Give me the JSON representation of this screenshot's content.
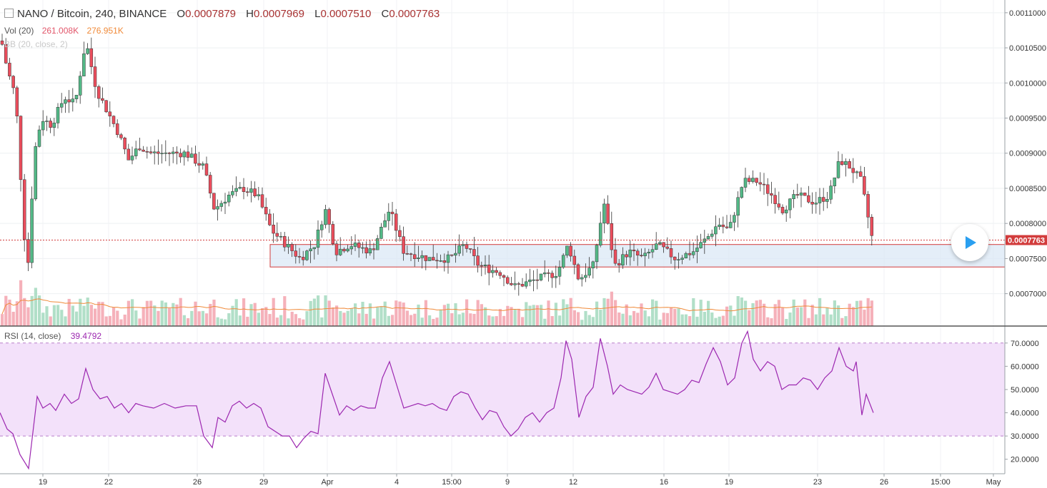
{
  "header": {
    "symbol": "NANO / Bitcoin, 240, BINANCE",
    "open_label": "O",
    "open": "0.0007879",
    "high_label": "H",
    "high": "0.0007969",
    "low_label": "L",
    "low": "0.0007510",
    "close_label": "C",
    "close": "0.0007763"
  },
  "indicators": {
    "volume_label": "Vol (20)",
    "volume_value": "261.008K",
    "volume_ma": "276.951K",
    "bb_label": "BB (20, close, 2)",
    "rsi_label": "RSI (14, close)",
    "rsi_value": "39.4792"
  },
  "colors": {
    "up": "#53b987",
    "down": "#eb4d5c",
    "rsi": "#9c27b0",
    "vol_ma": "#f08a39",
    "zone": "#dbe8f5",
    "zone_border": "#d23c3c",
    "price_tag": "#d23c3c"
  },
  "icons": {
    "play": "play-icon",
    "symbol": "square-icon"
  },
  "chart_data": [
    {
      "type": "candlestick",
      "title": "NANO / Bitcoin, 240, BINANCE",
      "ylim": [
        0.00066,
        0.00111
      ],
      "y_ticks": [
        "0.0011000",
        "0.0010500",
        "0.0010000",
        "0.0009500",
        "0.0009000",
        "0.0008500",
        "0.0008000",
        "0.0007500",
        "0.0007000"
      ],
      "x_ticks": [
        "19",
        "22",
        "26",
        "29",
        "Apr",
        "4",
        "15:00",
        "9",
        "12",
        "16",
        "19",
        "23",
        "26",
        "15:00",
        "May"
      ],
      "last_price": "0.0007763",
      "support_zone": [
        0.000738,
        0.00077
      ],
      "close_path": [
        [
          0,
          0.00107
        ],
        [
          10,
          0.00102
        ],
        [
          22,
          0.00098
        ],
        [
          38,
          0.00072
        ],
        [
          48,
          0.0009
        ],
        [
          58,
          0.00095
        ],
        [
          72,
          0.00094
        ],
        [
          90,
          0.00098
        ],
        [
          105,
          0.00097
        ],
        [
          120,
          0.00106
        ],
        [
          135,
          0.00099
        ],
        [
          150,
          0.00096
        ],
        [
          165,
          0.00093
        ],
        [
          180,
          0.00089
        ],
        [
          195,
          0.00091
        ],
        [
          210,
          0.0009
        ],
        [
          230,
          0.0009
        ],
        [
          260,
          0.0009
        ],
        [
          285,
          0.00088
        ],
        [
          300,
          0.00082
        ],
        [
          320,
          0.00084
        ],
        [
          340,
          0.00085
        ],
        [
          360,
          0.00084
        ],
        [
          380,
          0.00079
        ],
        [
          400,
          0.00077
        ],
        [
          420,
          0.00075
        ],
        [
          440,
          0.00077
        ],
        [
          455,
          0.00082
        ],
        [
          470,
          0.00076
        ],
        [
          490,
          0.00077
        ],
        [
          520,
          0.00076
        ],
        [
          545,
          0.00082
        ],
        [
          565,
          0.00076
        ],
        [
          600,
          0.00075
        ],
        [
          630,
          0.00075
        ],
        [
          650,
          0.00077
        ],
        [
          670,
          0.00074
        ],
        [
          700,
          0.00073
        ],
        [
          720,
          0.00071
        ],
        [
          750,
          0.00072
        ],
        [
          780,
          0.00073
        ],
        [
          795,
          0.00077
        ],
        [
          810,
          0.00072
        ],
        [
          830,
          0.00074
        ],
        [
          845,
          0.00083
        ],
        [
          860,
          0.00074
        ],
        [
          880,
          0.00076
        ],
        [
          900,
          0.00075
        ],
        [
          920,
          0.00077
        ],
        [
          945,
          0.00075
        ],
        [
          970,
          0.00076
        ],
        [
          990,
          0.00078
        ],
        [
          1005,
          0.0008
        ],
        [
          1020,
          0.00079
        ],
        [
          1040,
          0.00086
        ],
        [
          1060,
          0.00086
        ],
        [
          1080,
          0.00084
        ],
        [
          1095,
          0.00082
        ],
        [
          1115,
          0.00084
        ],
        [
          1140,
          0.00083
        ],
        [
          1160,
          0.00084
        ],
        [
          1175,
          0.00089
        ],
        [
          1190,
          0.00088
        ],
        [
          1205,
          0.00086
        ],
        [
          1220,
          0.00078
        ]
      ]
    },
    {
      "type": "bar",
      "title": "Vol (20)",
      "values_note": "volume bars with 20-period moving average"
    },
    {
      "type": "line",
      "title": "RSI (14, close)",
      "ylim": [
        15,
        77
      ],
      "y_ticks": [
        "70.0000",
        "60.0000",
        "50.0000",
        "40.0000",
        "30.0000",
        "20.0000"
      ],
      "band": [
        30,
        70
      ],
      "series": [
        {
          "name": "RSI",
          "points": [
            [
              0,
              40
            ],
            [
              10,
              33
            ],
            [
              18,
              31
            ],
            [
              28,
              22
            ],
            [
              40,
              16
            ],
            [
              52,
              47
            ],
            [
              60,
              42
            ],
            [
              70,
              44
            ],
            [
              78,
              41
            ],
            [
              90,
              48
            ],
            [
              100,
              44
            ],
            [
              110,
              46
            ],
            [
              120,
              59
            ],
            [
              130,
              50
            ],
            [
              140,
              46
            ],
            [
              150,
              47
            ],
            [
              160,
              42
            ],
            [
              170,
              44
            ],
            [
              180,
              40
            ],
            [
              190,
              44
            ],
            [
              200,
              43
            ],
            [
              215,
              42
            ],
            [
              230,
              44
            ],
            [
              245,
              42
            ],
            [
              260,
              43
            ],
            [
              275,
              43
            ],
            [
              285,
              30
            ],
            [
              297,
              25
            ],
            [
              305,
              38
            ],
            [
              315,
              36
            ],
            [
              325,
              43
            ],
            [
              335,
              45
            ],
            [
              345,
              42
            ],
            [
              355,
              44
            ],
            [
              365,
              42
            ],
            [
              375,
              34
            ],
            [
              385,
              32
            ],
            [
              395,
              30
            ],
            [
              405,
              30
            ],
            [
              415,
              25
            ],
            [
              425,
              29
            ],
            [
              435,
              32
            ],
            [
              445,
              31
            ],
            [
              455,
              57
            ],
            [
              465,
              48
            ],
            [
              475,
              39
            ],
            [
              485,
              43
            ],
            [
              495,
              41
            ],
            [
              505,
              43
            ],
            [
              515,
              42
            ],
            [
              525,
              42
            ],
            [
              535,
              55
            ],
            [
              545,
              62
            ],
            [
              555,
              52
            ],
            [
              565,
              42
            ],
            [
              575,
              43
            ],
            [
              585,
              44
            ],
            [
              595,
              43
            ],
            [
              605,
              44
            ],
            [
              615,
              42
            ],
            [
              625,
              41
            ],
            [
              635,
              47
            ],
            [
              645,
              49
            ],
            [
              655,
              48
            ],
            [
              665,
              42
            ],
            [
              675,
              37
            ],
            [
              685,
              41
            ],
            [
              695,
              40
            ],
            [
              705,
              34
            ],
            [
              715,
              30
            ],
            [
              725,
              33
            ],
            [
              735,
              38
            ],
            [
              745,
              40
            ],
            [
              755,
              36
            ],
            [
              765,
              40
            ],
            [
              775,
              42
            ],
            [
              785,
              55
            ],
            [
              792,
              71
            ],
            [
              800,
              63
            ],
            [
              810,
              38
            ],
            [
              820,
              47
            ],
            [
              830,
              51
            ],
            [
              840,
              72
            ],
            [
              850,
              60
            ],
            [
              858,
              48
            ],
            [
              868,
              52
            ],
            [
              878,
              50
            ],
            [
              888,
              49
            ],
            [
              898,
              48
            ],
            [
              908,
              51
            ],
            [
              918,
              57
            ],
            [
              928,
              50
            ],
            [
              938,
              49
            ],
            [
              948,
              48
            ],
            [
              958,
              50
            ],
            [
              968,
              54
            ],
            [
              978,
              53
            ],
            [
              988,
              61
            ],
            [
              998,
              68
            ],
            [
              1008,
              62
            ],
            [
              1018,
              52
            ],
            [
              1028,
              55
            ],
            [
              1038,
              70
            ],
            [
              1046,
              75
            ],
            [
              1054,
              63
            ],
            [
              1064,
              58
            ],
            [
              1074,
              62
            ],
            [
              1084,
              60
            ],
            [
              1094,
              50
            ],
            [
              1104,
              52
            ],
            [
              1114,
              52
            ],
            [
              1124,
              55
            ],
            [
              1134,
              54
            ],
            [
              1144,
              50
            ],
            [
              1154,
              55
            ],
            [
              1164,
              58
            ],
            [
              1174,
              68
            ],
            [
              1184,
              60
            ],
            [
              1194,
              58
            ],
            [
              1198,
              62
            ],
            [
              1206,
              39
            ],
            [
              1212,
              48
            ],
            [
              1222,
              40
            ]
          ]
        }
      ]
    }
  ]
}
